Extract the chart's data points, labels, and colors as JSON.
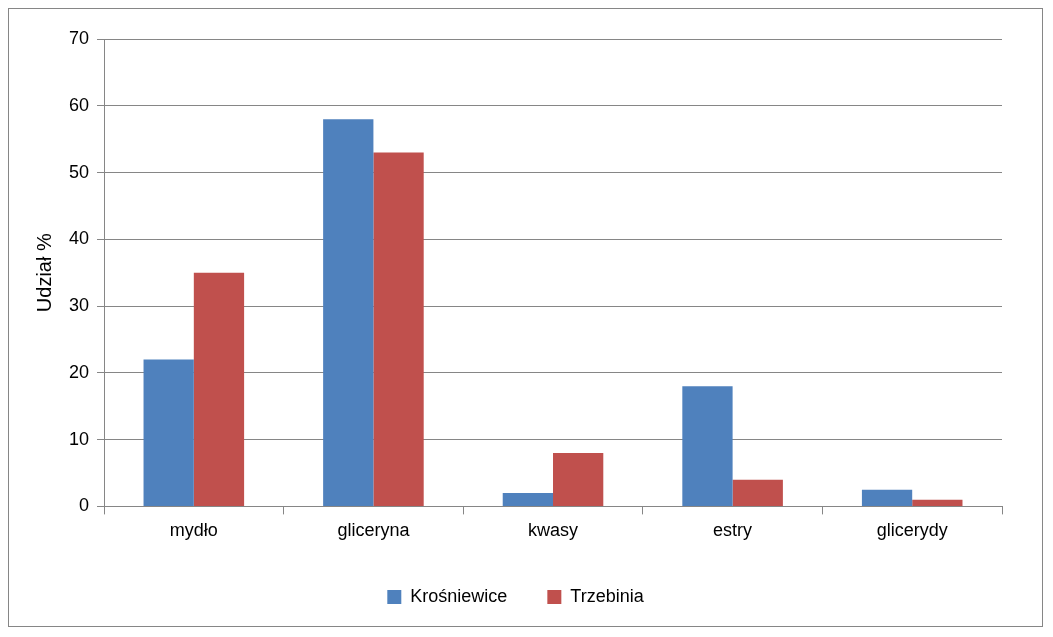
{
  "chart_data": {
    "type": "bar",
    "ylabel": "Udział %",
    "categories": [
      "mydło",
      "gliceryna",
      "kwasy",
      "estry",
      "glicerydy"
    ],
    "series": [
      {
        "name": "Krośniewice",
        "color": "#4f81bd",
        "values": [
          22,
          58,
          2,
          18,
          2.5
        ]
      },
      {
        "name": "Trzebinia",
        "color": "#c0504d",
        "values": [
          35,
          53,
          8,
          4,
          1
        ]
      }
    ],
    "ylim": [
      0,
      70
    ],
    "yticks": [
      0,
      10,
      20,
      30,
      40,
      50,
      60,
      70
    ],
    "grid": "y",
    "legend": "bottom"
  }
}
